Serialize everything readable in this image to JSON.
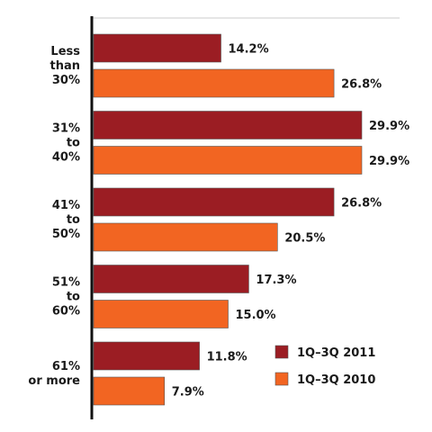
{
  "chart_data": {
    "type": "bar",
    "orientation": "horizontal",
    "title": "",
    "xlabel": "",
    "ylabel": "",
    "xlim": [
      0,
      30
    ],
    "grid": false,
    "legend_position": "bottom-right",
    "categories": [
      [
        "Less",
        "than",
        "30%"
      ],
      [
        "31%",
        "to",
        "40%"
      ],
      [
        "41%",
        "to",
        "50%"
      ],
      [
        "51%",
        "to",
        "60%"
      ],
      [
        "61%",
        "or more"
      ]
    ],
    "series": [
      {
        "name": "1Q–3Q 2011",
        "color": "#9b1d23",
        "values": [
          14.2,
          29.9,
          26.8,
          17.3,
          11.8
        ],
        "labels": [
          "14.2%",
          "29.9%",
          "26.8%",
          "17.3%",
          "11.8%"
        ]
      },
      {
        "name": "1Q–3Q 2010",
        "color": "#f26522",
        "values": [
          26.8,
          29.9,
          20.5,
          15.0,
          7.9
        ],
        "labels": [
          "26.8%",
          "29.9%",
          "20.5%",
          "15.0%",
          "7.9%"
        ]
      }
    ]
  }
}
